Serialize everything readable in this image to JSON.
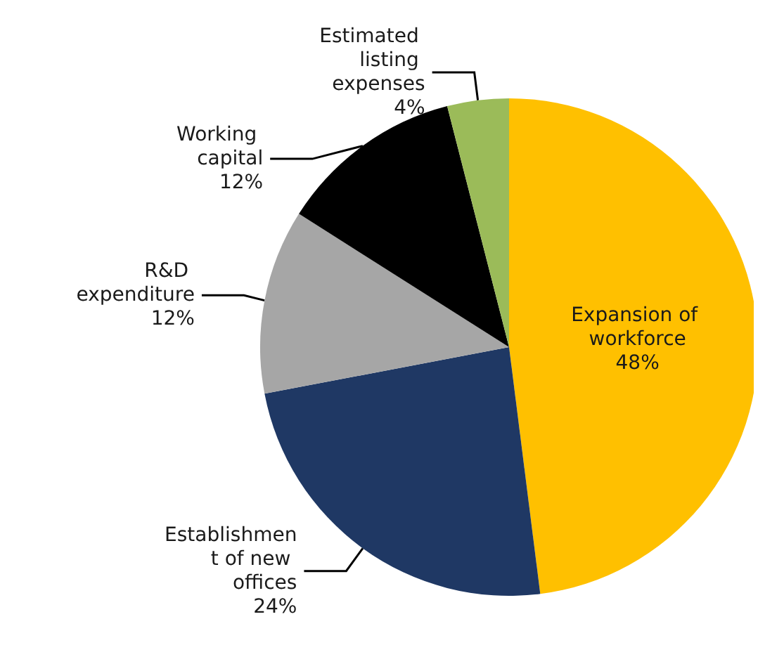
{
  "chart_data": {
    "type": "pie",
    "categories": [
      "Expansion of workforce",
      "Establishment of new offices",
      "R&D expenditure",
      "Working capital",
      "Estimated listing expenses"
    ],
    "values": [
      48,
      24,
      12,
      12,
      4
    ],
    "value_labels": [
      "48%",
      "24%",
      "12%",
      "12%",
      "4%"
    ],
    "colors": [
      "#ffc000",
      "#1f3864",
      "#a6a6a6",
      "#000000",
      "#9bbb59"
    ],
    "legend": false
  }
}
